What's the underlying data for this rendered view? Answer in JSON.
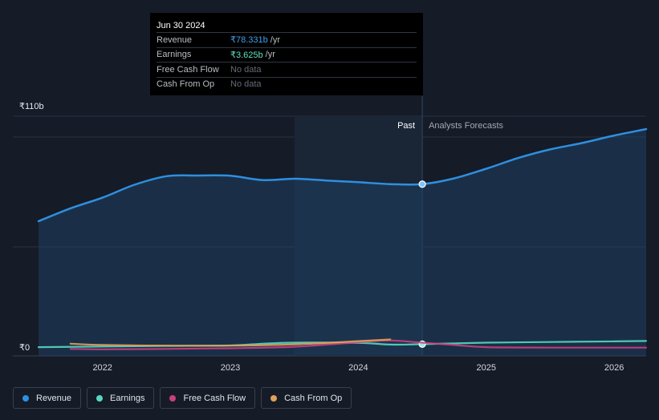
{
  "tooltip": {
    "date": "Jun 30 2024",
    "rows": [
      {
        "name": "Revenue",
        "value": "₹78.331b",
        "unit": "/yr"
      },
      {
        "name": "Earnings",
        "value": "₹3.625b",
        "unit": "/yr"
      },
      {
        "name": "Free Cash Flow",
        "value": "No data",
        "unit": ""
      },
      {
        "name": "Cash From Op",
        "value": "No data",
        "unit": ""
      }
    ]
  },
  "legend": [
    {
      "label": "Revenue",
      "color": "#2e8fe0"
    },
    {
      "label": "Earnings",
      "color": "#58d7c0"
    },
    {
      "label": "Free Cash Flow",
      "color": "#c8407e"
    },
    {
      "label": "Cash From Op",
      "color": "#e0a15a"
    }
  ],
  "chart_data": {
    "type": "line",
    "y_top_label": "₹110b",
    "y_bottom_label": "₹0",
    "ylim": [
      0,
      110
    ],
    "xlim": [
      2021.5,
      2026.25
    ],
    "x_ticks": [
      2022,
      2023,
      2024,
      2025,
      2026
    ],
    "x_tick_labels": [
      "2022",
      "2023",
      "2024",
      "2025",
      "2026"
    ],
    "past_label": "Past",
    "forecast_label": "Analysts Forecasts",
    "divider_x": 2024.5,
    "highlight_start": 2023.5,
    "series": [
      {
        "name": "Revenue",
        "color": "#2e8fe0",
        "fill": true,
        "x": [
          2021.5,
          2021.75,
          2022.0,
          2022.25,
          2022.5,
          2022.75,
          2023.0,
          2023.25,
          2023.5,
          2023.75,
          2024.0,
          2024.25,
          2024.5,
          2024.75,
          2025.0,
          2025.25,
          2025.5,
          2025.75,
          2026.0,
          2026.25
        ],
        "values": [
          61,
          67,
          72,
          78,
          82,
          82.3,
          82.2,
          80.2,
          80.8,
          80.0,
          79.2,
          78.3,
          78.3,
          81.0,
          85.5,
          90.5,
          94.5,
          97.5,
          101.0,
          104.0
        ]
      },
      {
        "name": "Earnings",
        "color": "#58d7c0",
        "fill": false,
        "x": [
          2021.5,
          2022.0,
          2022.5,
          2023.0,
          2023.25,
          2023.5,
          2024.0,
          2024.25,
          2024.5,
          2025.0,
          2025.5,
          2026.0,
          2026.25
        ],
        "values": [
          2.2,
          2.5,
          2.8,
          3.0,
          3.8,
          4.3,
          4.2,
          3.4,
          3.6,
          4.3,
          4.6,
          4.9,
          5.1
        ]
      },
      {
        "name": "Free Cash Flow",
        "color": "#c8407e",
        "fill": false,
        "x": [
          2021.75,
          2022.0,
          2022.5,
          2023.0,
          2023.5,
          2024.0,
          2024.25,
          2024.5,
          2024.75,
          2025.0,
          2025.5,
          2026.0,
          2026.25
        ],
        "values": [
          1.4,
          1.2,
          1.4,
          1.7,
          2.4,
          4.5,
          5.3,
          4.3,
          3.2,
          2.2,
          2.0,
          2.0,
          2.0
        ]
      },
      {
        "name": "Cash From Op",
        "color": "#e0a15a",
        "fill": false,
        "x": [
          2021.75,
          2022.0,
          2022.5,
          2023.0,
          2023.5,
          2024.0,
          2024.25
        ],
        "values": [
          3.8,
          3.2,
          2.9,
          2.9,
          3.5,
          5.0,
          5.8
        ]
      }
    ]
  }
}
